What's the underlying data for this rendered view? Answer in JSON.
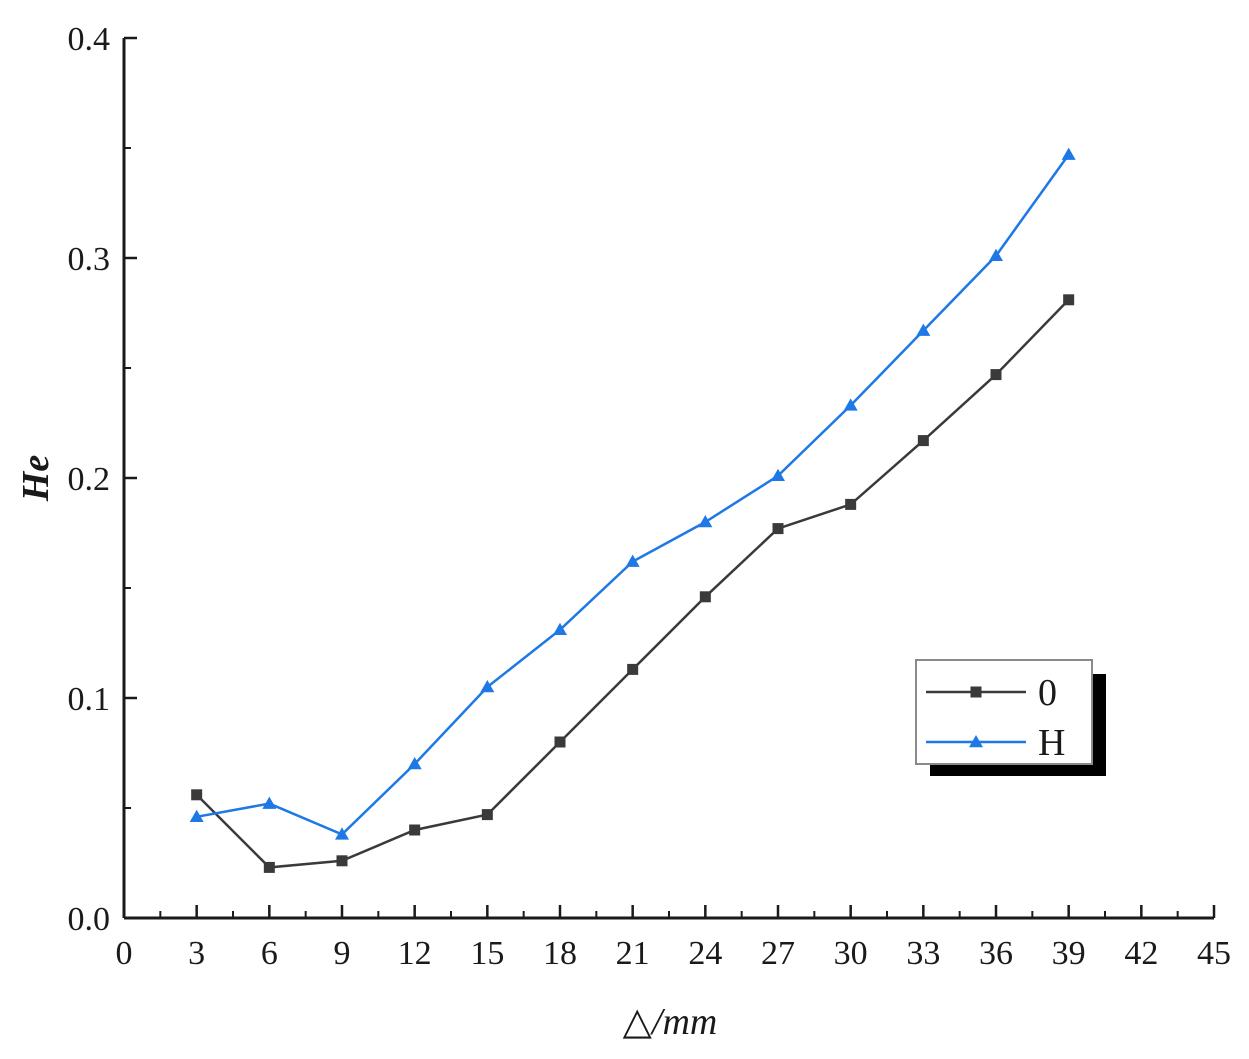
{
  "chart_data": {
    "type": "line",
    "xlabel": "△/mm",
    "ylabel": "He",
    "xlim": [
      0,
      45
    ],
    "ylim": [
      0.0,
      0.4
    ],
    "x_ticks": [
      0,
      3,
      6,
      9,
      12,
      15,
      18,
      21,
      24,
      27,
      30,
      33,
      36,
      39,
      42,
      45
    ],
    "x_tick_labels": [
      "0",
      "3",
      "6",
      "9",
      "12",
      "15",
      "18",
      "21",
      "24",
      "27",
      "30",
      "33",
      "36",
      "39",
      "42",
      "45"
    ],
    "y_ticks": [
      0.0,
      0.1,
      0.2,
      0.3,
      0.4
    ],
    "y_tick_labels": [
      "0.0",
      "0.1",
      "0.2",
      "0.3",
      "0.4"
    ],
    "grid": false,
    "legend_position": "right",
    "x": [
      3,
      6,
      9,
      12,
      15,
      18,
      21,
      24,
      27,
      30,
      33,
      36,
      39
    ],
    "series": [
      {
        "name": "0",
        "marker": "square",
        "color": "#3a3a3a",
        "values": [
          0.056,
          0.023,
          0.026,
          0.04,
          0.047,
          0.08,
          0.113,
          0.146,
          0.177,
          0.188,
          0.217,
          0.247,
          0.281
        ]
      },
      {
        "name": "H",
        "marker": "triangle",
        "color": "#1e78e6",
        "values": [
          0.046,
          0.052,
          0.038,
          0.07,
          0.105,
          0.131,
          0.162,
          0.18,
          0.201,
          0.233,
          0.267,
          0.301,
          0.347
        ]
      }
    ]
  }
}
